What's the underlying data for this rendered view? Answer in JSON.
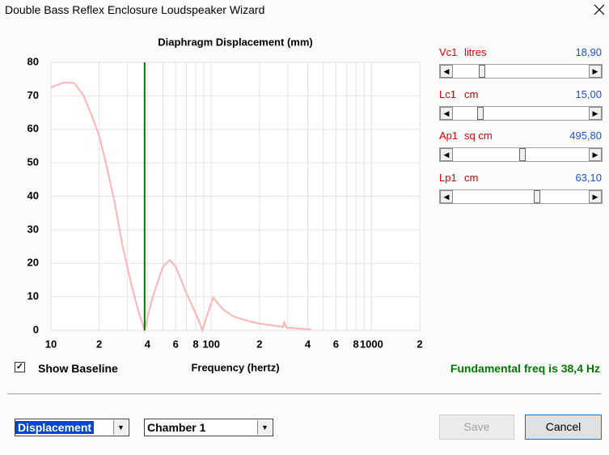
{
  "window": {
    "title": "Double Bass Reflex Enclosure Loudspeaker Wizard"
  },
  "chart_data": {
    "type": "line",
    "title": "Diaphragm Displacement (mm)",
    "x_label": "Frequency (hertz)",
    "x_scale": "log",
    "grid": true,
    "xlim": [
      10,
      2000
    ],
    "xticks": [
      10,
      {
        "value": 20,
        "label": "2"
      },
      {
        "value": 40,
        "label": "4"
      },
      {
        "value": 60,
        "label": "6"
      },
      {
        "value": 80,
        "label": "8"
      },
      100,
      {
        "value": 200,
        "label": "2"
      },
      {
        "value": 400,
        "label": "4"
      },
      {
        "value": 600,
        "label": "6"
      },
      {
        "value": 800,
        "label": "8"
      },
      1000,
      {
        "value": 2000,
        "label": "2"
      }
    ],
    "minor_xticks": [
      30,
      50,
      70,
      90,
      300,
      500,
      700,
      900
    ],
    "ylim": [
      0,
      80
    ],
    "yticks": [
      0,
      10,
      20,
      30,
      40,
      50,
      60,
      70,
      80
    ],
    "series": [
      {
        "color": "#ffb3b3",
        "x": [
          10,
          12,
          14,
          16,
          18,
          20,
          22,
          25,
          28,
          32,
          35,
          38.4,
          42,
          46,
          50,
          55,
          60,
          65,
          70,
          75,
          80,
          85,
          88,
          95,
          103,
          110,
          120,
          140,
          170,
          200,
          250,
          280,
          285,
          295,
          350,
          420
        ],
        "values": [
          72.5,
          74,
          73.8,
          70,
          64,
          58,
          50,
          38,
          25,
          13,
          6,
          0,
          8,
          14,
          19,
          21,
          19,
          15,
          11,
          8,
          5,
          2,
          0,
          5,
          9.8,
          8,
          6,
          4,
          2.8,
          2,
          1.4,
          1,
          2.4,
          0.8,
          0.5,
          0.3
        ]
      }
    ],
    "marker_line": {
      "x": 38.4,
      "color": "#007a00"
    }
  },
  "sliders": [
    {
      "name": "Vc1",
      "unit": "litres",
      "value": "18,90"
    },
    {
      "name": "Lc1",
      "unit": "cm",
      "value": "15,00"
    },
    {
      "name": "Ap1",
      "unit": "sq cm",
      "value": "495,80"
    },
    {
      "name": "Lp1",
      "unit": "cm",
      "value": "63,10"
    }
  ],
  "checkbox": {
    "label": "Show Baseline",
    "checked": true
  },
  "status": "Fundamental freq is 38,4 Hz",
  "dropdowns": [
    {
      "value": "Displacement"
    },
    {
      "value": "Chamber 1"
    }
  ],
  "buttons": [
    {
      "label": "Save",
      "enabled": false
    },
    {
      "label": "Cancel",
      "enabled": true
    }
  ]
}
